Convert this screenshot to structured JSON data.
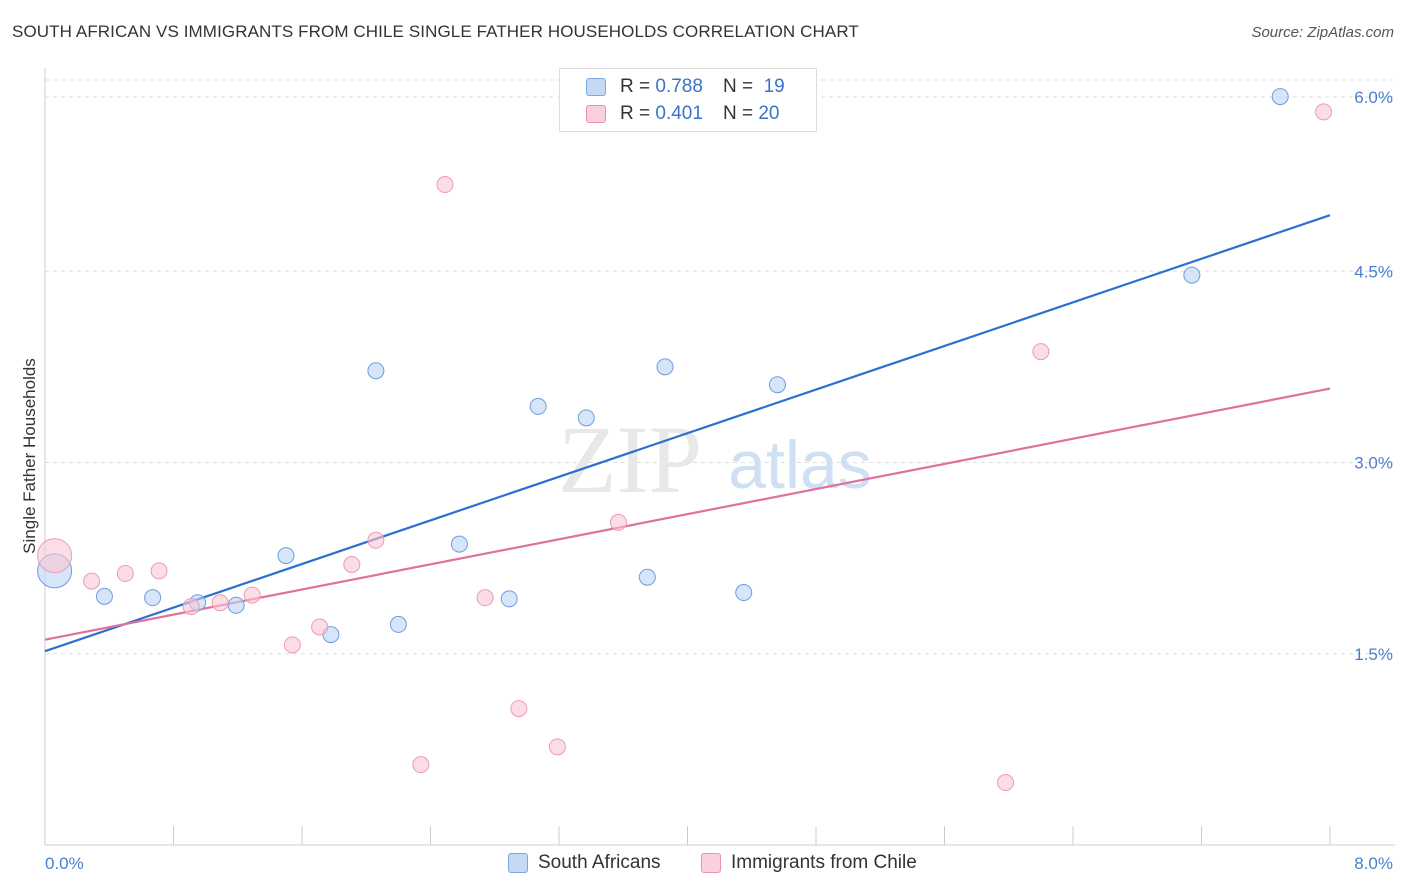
{
  "title": "SOUTH AFRICAN VS IMMIGRANTS FROM CHILE SINGLE FATHER HOUSEHOLDS CORRELATION CHART",
  "source": "Source: ZipAtlas.com",
  "watermark": {
    "zip": "ZIP",
    "atlas": "atlas"
  },
  "legend": {
    "r_label": "R =",
    "n_label": "N =",
    "items": [
      {
        "name": "South Africans",
        "r": "0.788",
        "n": "19",
        "color": "#aec9f0",
        "stroke": "#7aa6e0"
      },
      {
        "name": "Immigrants from Chile",
        "r": "0.401",
        "n": "20",
        "color": "#f7c0cf",
        "stroke": "#eb92ac"
      }
    ]
  },
  "chart_data": {
    "type": "scatter",
    "title": "SOUTH AFRICAN VS IMMIGRANTS FROM CHILE SINGLE FATHER HOUSEHOLDS CORRELATION CHART",
    "xlabel": "",
    "ylabel": "Single Father Households",
    "xlim": [
      0,
      8
    ],
    "ylim": [
      0,
      6.25
    ],
    "x_tick_labels": [
      "0.0%",
      "8.0%"
    ],
    "y_ticks": [
      1.5,
      3.0,
      4.5,
      6.0
    ],
    "y_tick_labels": [
      "1.5%",
      "3.0%",
      "4.5%",
      "6.0%"
    ],
    "grid": "horizontal dashed",
    "legend_position": "top-center",
    "series": [
      {
        "name": "South Africans",
        "color": "#6d9de0",
        "fill": "#bcd3f3",
        "line_color": "#2b6fd1",
        "trend": {
          "x": [
            0,
            8
          ],
          "y": [
            1.52,
            4.94
          ]
        },
        "points": [
          {
            "x": 0.06,
            "y": 2.15,
            "big": true
          },
          {
            "x": 0.37,
            "y": 1.95
          },
          {
            "x": 0.67,
            "y": 1.94
          },
          {
            "x": 0.95,
            "y": 1.9
          },
          {
            "x": 1.19,
            "y": 1.88
          },
          {
            "x": 1.5,
            "y": 2.27
          },
          {
            "x": 1.78,
            "y": 1.65
          },
          {
            "x": 2.06,
            "y": 3.72
          },
          {
            "x": 2.2,
            "y": 1.73
          },
          {
            "x": 2.58,
            "y": 2.36
          },
          {
            "x": 2.89,
            "y": 1.93
          },
          {
            "x": 3.07,
            "y": 3.44
          },
          {
            "x": 3.37,
            "y": 3.35
          },
          {
            "x": 3.75,
            "y": 2.1
          },
          {
            "x": 3.86,
            "y": 3.75
          },
          {
            "x": 4.35,
            "y": 1.98
          },
          {
            "x": 4.56,
            "y": 3.61
          },
          {
            "x": 7.14,
            "y": 4.47
          },
          {
            "x": 7.69,
            "y": 5.87
          }
        ]
      },
      {
        "name": "Immigrants from Chile",
        "color": "#ee9ab2",
        "fill": "#f8c7d4",
        "line_color": "#e0719a",
        "trend": {
          "x": [
            0,
            8
          ],
          "y": [
            1.61,
            3.58
          ]
        },
        "points": [
          {
            "x": 0.06,
            "y": 2.27,
            "big": true
          },
          {
            "x": 0.29,
            "y": 2.07
          },
          {
            "x": 0.5,
            "y": 2.13
          },
          {
            "x": 0.71,
            "y": 2.15
          },
          {
            "x": 0.91,
            "y": 1.87
          },
          {
            "x": 1.09,
            "y": 1.9
          },
          {
            "x": 1.29,
            "y": 1.96
          },
          {
            "x": 1.54,
            "y": 1.57
          },
          {
            "x": 1.71,
            "y": 1.71
          },
          {
            "x": 1.91,
            "y": 2.2
          },
          {
            "x": 2.06,
            "y": 2.39
          },
          {
            "x": 2.34,
            "y": 0.63
          },
          {
            "x": 2.49,
            "y": 5.18
          },
          {
            "x": 2.74,
            "y": 1.94
          },
          {
            "x": 2.95,
            "y": 1.07
          },
          {
            "x": 3.19,
            "y": 0.77
          },
          {
            "x": 3.57,
            "y": 2.53
          },
          {
            "x": 5.98,
            "y": 0.49
          },
          {
            "x": 6.2,
            "y": 3.87
          },
          {
            "x": 7.96,
            "y": 5.75
          }
        ]
      }
    ]
  }
}
